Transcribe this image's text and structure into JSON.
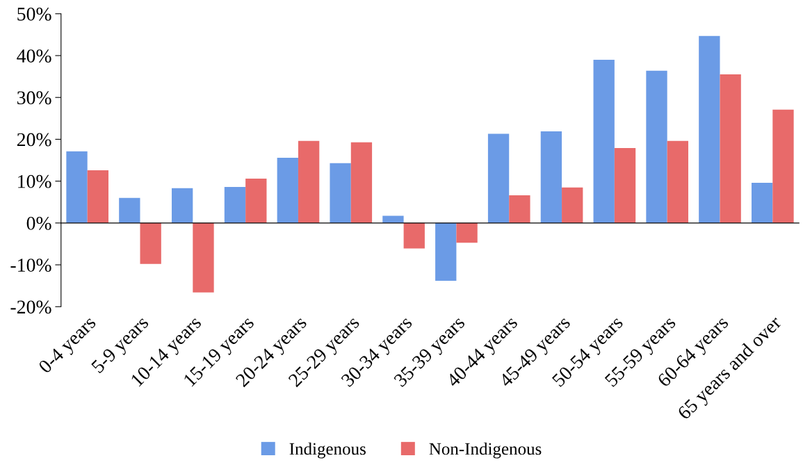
{
  "chart_data": {
    "type": "bar",
    "categories": [
      "0-4 years",
      "5-9 years",
      "10-14 years",
      "15-19 years",
      "20-24 years",
      "25-29 years",
      "30-34 years",
      "35-39 years",
      "40-44 years",
      "45-49 years",
      "50-54 years",
      "55-59 years",
      "60-64 years",
      "65 years and over"
    ],
    "series": [
      {
        "name": "Indigenous",
        "color": "#6b9be6",
        "values": [
          17.1,
          6.0,
          8.3,
          8.6,
          15.6,
          14.3,
          1.7,
          -13.8,
          21.3,
          21.9,
          39.0,
          36.4,
          44.7,
          9.6
        ]
      },
      {
        "name": "Non-Indigenous",
        "color": "#e86a6a",
        "values": [
          12.6,
          -9.8,
          -16.6,
          10.6,
          19.6,
          19.3,
          -6.1,
          -4.7,
          6.6,
          8.5,
          17.9,
          19.6,
          35.5,
          27.1
        ]
      }
    ],
    "ylim": [
      -20,
      50
    ],
    "yticks": [
      {
        "value": -20,
        "label": "-20%"
      },
      {
        "value": -10,
        "label": "-10%"
      },
      {
        "value": 0,
        "label": "0%"
      },
      {
        "value": 10,
        "label": "10%"
      },
      {
        "value": 20,
        "label": "20%"
      },
      {
        "value": 30,
        "label": "30%"
      },
      {
        "value": 40,
        "label": "40%"
      },
      {
        "value": 50,
        "label": "50%"
      }
    ],
    "legend": "bottom"
  }
}
